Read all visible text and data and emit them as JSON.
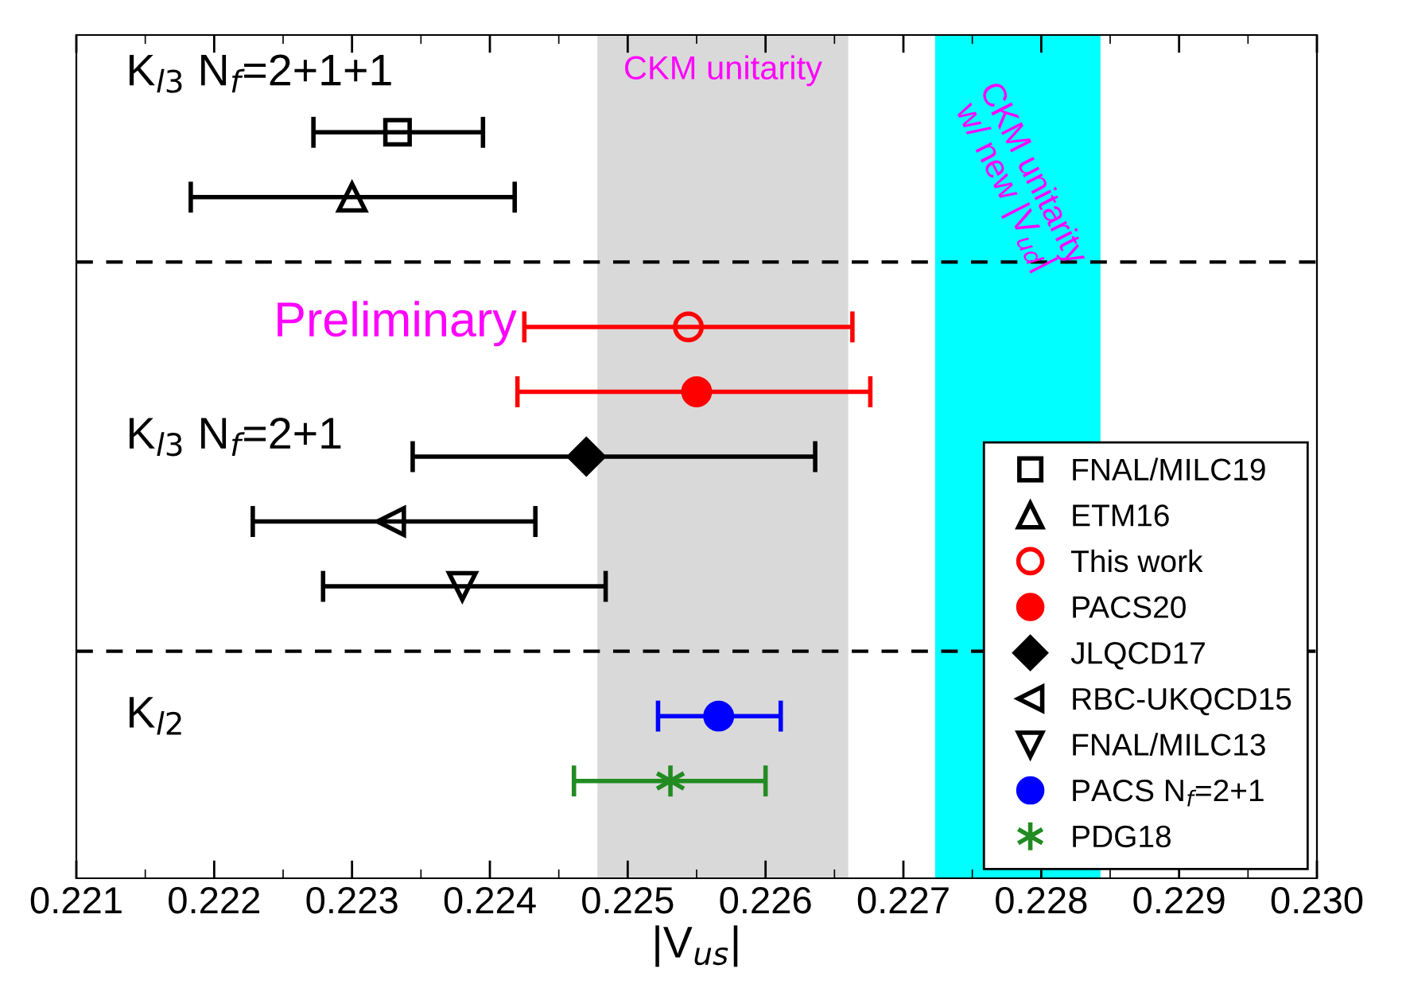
{
  "chart_data": {
    "type": "scatter",
    "orientation": "horizontal",
    "xlabel": "|V$_{us}$|",
    "categories": [
      null,
      null,
      null,
      null,
      null,
      null,
      null,
      null,
      null,
      null,
      null,
      null,
      null
    ],
    "xlim": [
      0.221,
      0.23
    ],
    "xticks": [
      0.221,
      0.222,
      0.223,
      0.224,
      0.225,
      0.226,
      0.227,
      0.228,
      0.229,
      {
        "value": 0.23,
        "label": "0.230"
      }
    ],
    "tick_labels": "x",
    "grid": false,
    "legend": "bottom right",
    "series": [
      {
        "name": "FNAL/MILC19",
        "color": "#000000",
        "marker": "square",
        "values": [
          null,
          0.22333,
          null,
          null,
          null,
          null,
          null,
          null,
          null,
          null,
          null,
          null,
          null
        ],
        "errors": [
          null,
          [
            0.22272,
            0.22395
          ],
          null,
          null,
          null,
          null,
          null,
          null,
          null,
          null,
          null,
          null,
          null
        ]
      },
      {
        "name": "ETM16",
        "color": "#000000",
        "marker": "triangle",
        "values": [
          null,
          null,
          0.223,
          null,
          null,
          null,
          null,
          null,
          null,
          null,
          null,
          null,
          null
        ],
        "errors": [
          null,
          null,
          [
            0.22183,
            0.22418
          ],
          null,
          null,
          null,
          null,
          null,
          null,
          null,
          null,
          null,
          null
        ]
      },
      {
        "name": "This work",
        "color": "#ff0000",
        "marker": "circle",
        "values": [
          null,
          null,
          null,
          null,
          0.22544,
          null,
          null,
          null,
          null,
          null,
          null,
          null,
          null
        ],
        "errors": [
          null,
          null,
          null,
          null,
          [
            0.22425,
            0.22663
          ],
          null,
          null,
          null,
          null,
          null,
          null,
          null,
          null
        ]
      },
      {
        "name": "PACS20",
        "color": "#ff0000",
        "marker": "circle",
        "values": [
          null,
          null,
          null,
          null,
          null,
          0.2255,
          null,
          null,
          null,
          null,
          null,
          null,
          null
        ],
        "errors": [
          null,
          null,
          null,
          null,
          null,
          [
            0.2242,
            0.22676
          ],
          null,
          null,
          null,
          null,
          null,
          null,
          null
        ]
      },
      {
        "name": "JLQCD17",
        "color": "#000000",
        "marker": "diamond",
        "values": [
          null,
          null,
          null,
          null,
          null,
          null,
          0.2247,
          null,
          null,
          null,
          null,
          null,
          null
        ],
        "errors": [
          null,
          null,
          null,
          null,
          null,
          null,
          [
            0.22344,
            0.22636
          ],
          null,
          null,
          null,
          null,
          null,
          null
        ]
      },
      {
        "name": "RBC-UKQCD15",
        "color": "#000000",
        "marker": "triangle-left",
        "values": [
          null,
          null,
          null,
          null,
          null,
          null,
          null,
          0.22328,
          null,
          null,
          null,
          null,
          null
        ],
        "errors": [
          null,
          null,
          null,
          null,
          null,
          null,
          null,
          [
            0.22228,
            0.22433
          ],
          null,
          null,
          null,
          null,
          null
        ]
      },
      {
        "name": "FNAL/MILC13",
        "color": "#000000",
        "marker": "triangle-down",
        "values": [
          null,
          null,
          null,
          null,
          null,
          null,
          null,
          null,
          0.2238,
          null,
          null,
          null,
          null
        ],
        "errors": [
          null,
          null,
          null,
          null,
          null,
          null,
          null,
          null,
          [
            0.22279,
            0.22484
          ],
          null,
          null,
          null,
          null
        ]
      },
      {
        "name": "PACS N$_{f}$=2+1",
        "color": "#0000ff",
        "marker": "circle",
        "values": [
          null,
          null,
          null,
          null,
          null,
          null,
          null,
          null,
          null,
          null,
          0.22566,
          null,
          null
        ],
        "errors": [
          null,
          null,
          null,
          null,
          null,
          null,
          null,
          null,
          null,
          null,
          [
            0.22522,
            0.22611
          ],
          null,
          null
        ]
      },
      {
        "name": "PDG18",
        "color": "#228b22",
        "marker": "cross",
        "values": [
          null,
          null,
          null,
          null,
          null,
          null,
          null,
          null,
          null,
          null,
          null,
          0.22531,
          null
        ],
        "errors": [
          null,
          null,
          null,
          null,
          null,
          null,
          null,
          null,
          null,
          null,
          null,
          [
            0.22461,
            0.226
          ],
          null
        ]
      }
    ],
    "bands": [
      {
        "axis": "x",
        "from": 0.22478,
        "to": 0.2266,
        "label": "CKM unitarity",
        "color": "#d9d9d9"
      },
      {
        "axis": "x",
        "from": 0.22723,
        "to": 0.22843,
        "label": "CKM unitarity\nw/ new |V$_{ud}$|",
        "color": "#00ffff"
      }
    ],
    "annotations": [
      "K$_{l3}$ N$_{f}$=2+1+1",
      "Preliminary",
      "K$_{l3}$ N$_{f}$=2+1",
      "K$_{l2}$"
    ]
  }
}
